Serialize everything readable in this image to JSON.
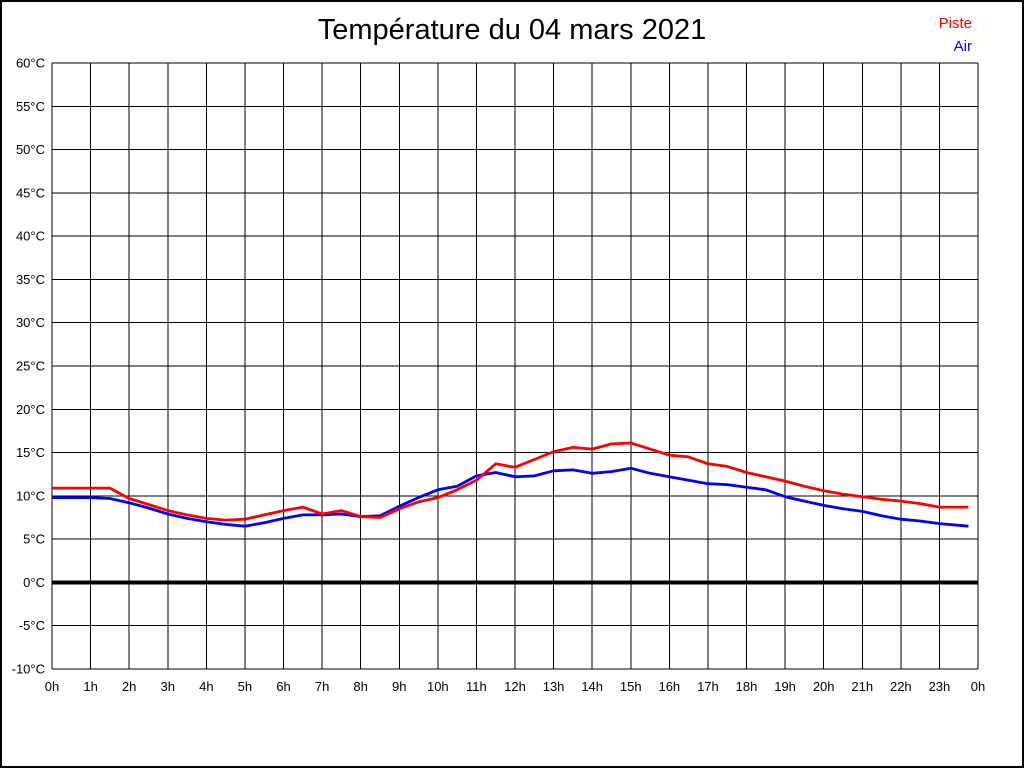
{
  "page": {
    "title": "Température du 04 mars 2021"
  },
  "legend": [
    {
      "label": "Piste",
      "color": "#ff0000"
    },
    {
      "label": "Air",
      "color": "#0000ff"
    }
  ],
  "chart_data": {
    "type": "line",
    "title": "Température du 04 mars 2021",
    "xlabel": "",
    "ylabel": "",
    "xlim": [
      0,
      24
    ],
    "ylim": [
      -10,
      60
    ],
    "y_step": 5,
    "grid": true,
    "zero_line": true,
    "legend_position": "top-right",
    "x_tick_labels": [
      "0h",
      "1h",
      "2h",
      "3h",
      "4h",
      "5h",
      "6h",
      "7h",
      "8h",
      "9h",
      "10h",
      "11h",
      "12h",
      "13h",
      "14h",
      "15h",
      "16h",
      "17h",
      "18h",
      "19h",
      "20h",
      "21h",
      "22h",
      "23h",
      "0h"
    ],
    "y_tick_labels": [
      "60°C",
      "55°C",
      "50°C",
      "45°C",
      "40°C",
      "35°C",
      "30°C",
      "25°C",
      "20°C",
      "15°C",
      "10°C",
      "5°C",
      "0°C",
      "-5°C",
      "-10°C"
    ],
    "x_hours": [
      0,
      0.5,
      1,
      1.5,
      2,
      2.5,
      3,
      3.5,
      4,
      4.5,
      5,
      5.5,
      6,
      6.5,
      7,
      7.5,
      8,
      8.5,
      9,
      9.5,
      10,
      10.5,
      11,
      11.5,
      12,
      12.5,
      13,
      13.5,
      14,
      14.5,
      15,
      15.5,
      16,
      16.5,
      17,
      17.5,
      18,
      18.5,
      19,
      19.5,
      20,
      20.5,
      21,
      21.5,
      22,
      22.5,
      23,
      23.5,
      23.75
    ],
    "series": [
      {
        "name": "Piste",
        "color": "#ff0000",
        "values": [
          10.9,
          10.9,
          10.9,
          10.9,
          9.7,
          9.0,
          8.3,
          7.8,
          7.4,
          7.2,
          7.3,
          7.8,
          8.3,
          8.7,
          7.9,
          8.3,
          7.6,
          7.5,
          8.5,
          9.3,
          9.8,
          10.7,
          11.8,
          13.7,
          13.3,
          14.2,
          15.1,
          15.6,
          15.4,
          16.0,
          16.1,
          15.4,
          14.7,
          14.5,
          13.7,
          13.4,
          12.7,
          12.2,
          11.7,
          11.1,
          10.6,
          10.2,
          9.9,
          9.6,
          9.4,
          9.1,
          8.7,
          8.7,
          8.7
        ]
      },
      {
        "name": "Air",
        "color": "#0000ff",
        "values": [
          9.8,
          9.8,
          9.8,
          9.7,
          9.2,
          8.6,
          7.9,
          7.4,
          7.0,
          6.7,
          6.5,
          6.9,
          7.4,
          7.8,
          7.8,
          7.9,
          7.6,
          7.7,
          8.8,
          9.8,
          10.7,
          11.1,
          12.3,
          12.7,
          12.2,
          12.3,
          12.9,
          13.0,
          12.6,
          12.8,
          13.2,
          12.6,
          12.2,
          11.8,
          11.4,
          11.3,
          11.0,
          10.7,
          9.9,
          9.4,
          8.9,
          8.5,
          8.2,
          7.7,
          7.3,
          7.1,
          6.8,
          6.6,
          6.5
        ]
      }
    ]
  }
}
